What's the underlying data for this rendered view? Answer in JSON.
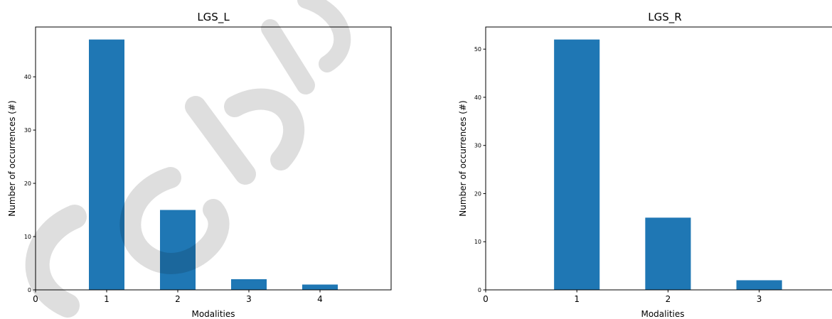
{
  "chart_data": [
    {
      "type": "bar",
      "title": "LGS_L",
      "xlabel": "Modalities",
      "ylabel": "Number of occurrences (#)",
      "categories": [
        1,
        2,
        3,
        4
      ],
      "values": [
        47,
        15,
        2,
        1
      ],
      "xlim": [
        0,
        5
      ],
      "ylim": [
        0,
        49.35
      ],
      "xticks": [
        0,
        1,
        2,
        3,
        4
      ],
      "yticks": [
        0,
        10,
        20,
        30,
        40
      ],
      "grid": false,
      "color": "#1f77b4"
    },
    {
      "type": "bar",
      "title": "LGS_R",
      "xlabel": "Modalities",
      "ylabel": "Number of occurrences (#)",
      "categories": [
        1,
        2,
        3
      ],
      "values": [
        52,
        15,
        2
      ],
      "xlim": [
        0,
        3.9
      ],
      "ylim": [
        0,
        54.6
      ],
      "xticks": [
        0,
        1,
        2,
        3
      ],
      "yticks": [
        0,
        10,
        20,
        30,
        40,
        50
      ],
      "grid": false,
      "color": "#1f77b4"
    }
  ]
}
